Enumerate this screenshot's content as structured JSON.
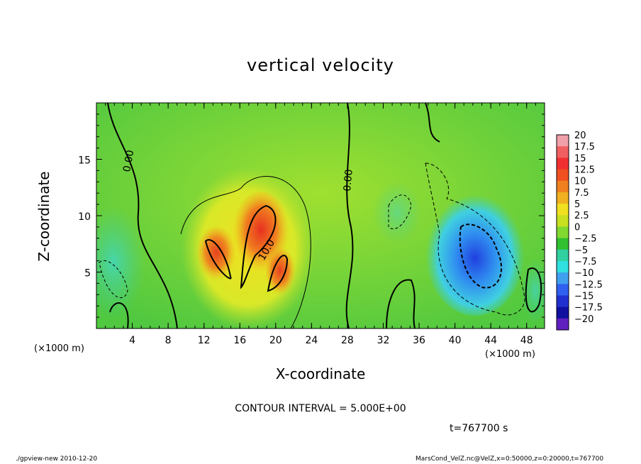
{
  "chart_data": {
    "type": "heatmap",
    "title": "vertical velocity",
    "xlabel": "X-coordinate",
    "ylabel": "Z-coordinate",
    "x_unit_left": "(×1000 m)",
    "x_unit_right": "(×1000 m)",
    "xlim": [
      0,
      50
    ],
    "ylim": [
      0,
      20
    ],
    "x_ticks": [
      4,
      8,
      12,
      16,
      20,
      24,
      28,
      32,
      36,
      40,
      44,
      48
    ],
    "y_ticks": [
      5,
      10,
      15
    ],
    "colorbar": {
      "levels": [
        20,
        17.5,
        15,
        12.5,
        10,
        7.5,
        5,
        2.5,
        0,
        -2.5,
        -5,
        -7.5,
        -10,
        -12.5,
        -15,
        -17.5,
        -20
      ],
      "labels": [
        "20",
        "17.5",
        "15",
        "12.5",
        "10",
        "7.5",
        "5",
        "2.5",
        "0",
        "−2.5",
        "−5",
        "−7.5",
        "−10",
        "−12.5",
        "−15",
        "−17.5",
        "−20"
      ],
      "colors": [
        "#f0a0a8",
        "#f06060",
        "#f03030",
        "#f05020",
        "#f08020",
        "#f0b020",
        "#f0e020",
        "#c8e020",
        "#80d830",
        "#30c030",
        "#30d0a0",
        "#30e0e0",
        "#40a0f0",
        "#3060f0",
        "#2030d0",
        "#1010a0",
        "#6020c0"
      ]
    },
    "contour_labels": [
      "0.00",
      "10.0",
      "0.00"
    ],
    "contour_interval": "CONTOUR INTERVAL = 5.000E+00",
    "time": "t=767700 s"
  },
  "footer": {
    "left": "./gpview-new  2010-12-20",
    "right": "MarsCond_VelZ.nc@VelZ,x=0:50000,z=0:20000,t=767700"
  }
}
